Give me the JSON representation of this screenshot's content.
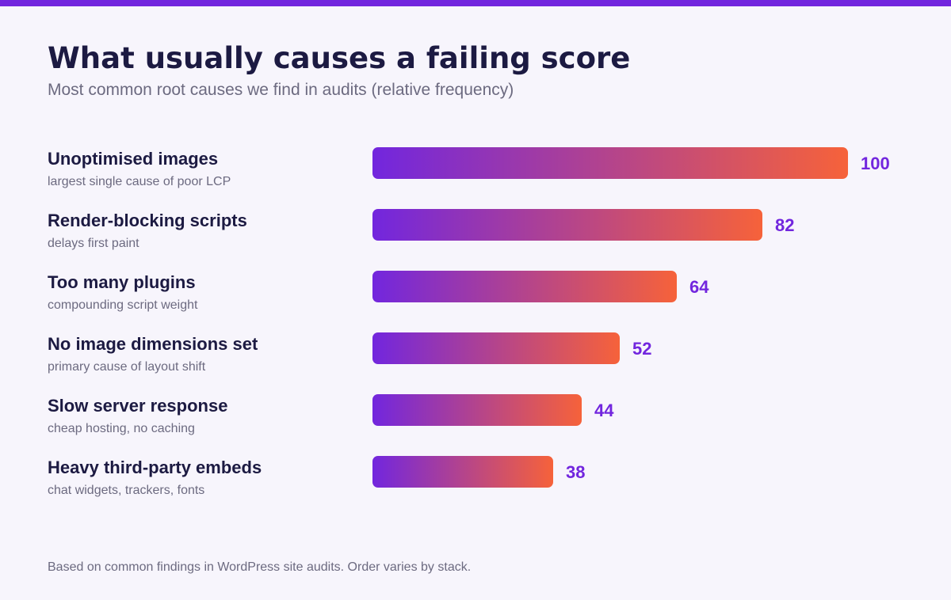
{
  "header": {
    "title": "What usually causes a failing score",
    "subtitle": "Most common root causes we find in audits (relative frequency)"
  },
  "footer": {
    "note": "Based on common findings in WordPress site audits. Order varies by stack."
  },
  "colors": {
    "accent": "#7226de",
    "bar_gradient_start": "#7226de",
    "bar_gradient_end": "#f6623a",
    "value_label": "#7226de",
    "title": "#1c1a42",
    "muted_text": "#6c6a80",
    "background": "#f7f5fc"
  },
  "chart_data": {
    "type": "bar",
    "orientation": "horizontal",
    "title": "What usually causes a failing score",
    "subtitle": "Most common root causes we find in audits (relative frequency)",
    "categories": [
      "Unoptimised images",
      "Render-blocking scripts",
      "Too many plugins",
      "No image dimensions set",
      "Slow server response",
      "Heavy third-party embeds"
    ],
    "descriptions": [
      "largest single cause of poor LCP",
      "delays first paint",
      "compounding script weight",
      "primary cause of layout shift",
      "cheap hosting, no caching",
      "chat widgets, trackers, fonts"
    ],
    "values": [
      100,
      82,
      64,
      52,
      44,
      38
    ],
    "xlim": [
      0,
      100
    ],
    "grid": false,
    "legend": "none",
    "data_labels": true
  }
}
